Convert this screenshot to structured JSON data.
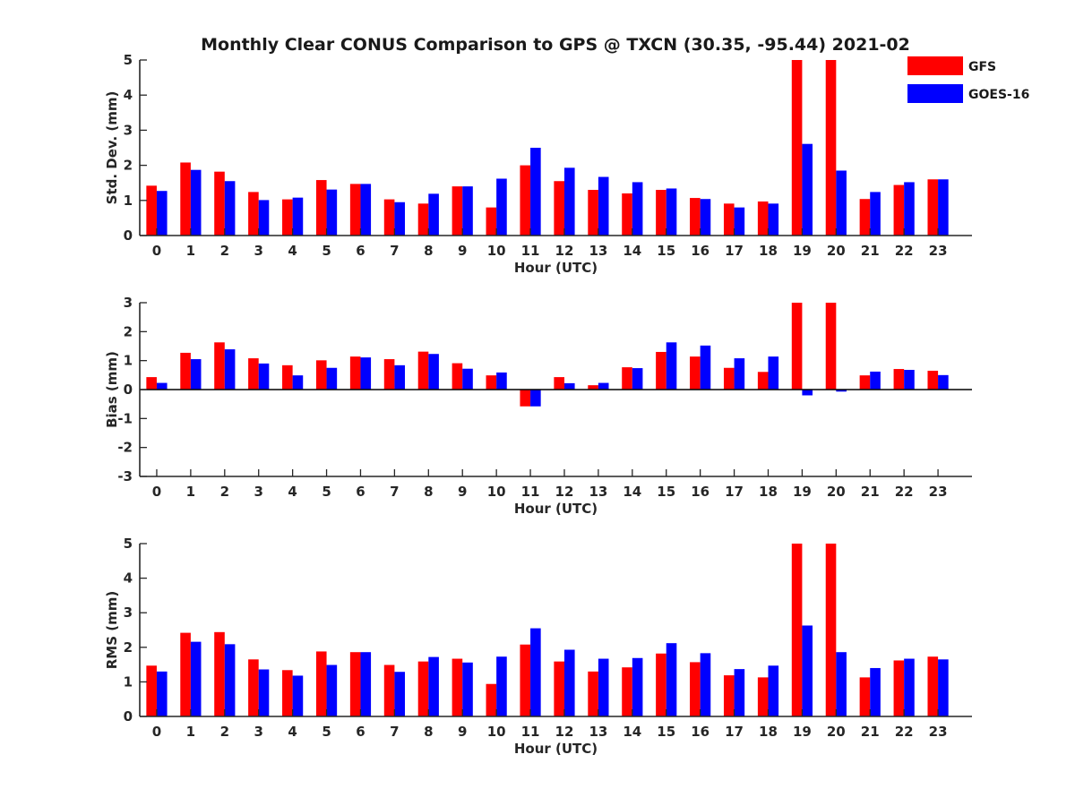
{
  "figure": {
    "title": "Monthly Clear CONUS Comparison to GPS @ TXCN (30.35, -95.44) 2021-02"
  },
  "legend": {
    "placement": "top-right",
    "entries": [
      {
        "name": "GFS",
        "color": "#ff0000"
      },
      {
        "name": "GOES-16",
        "color": "#0000ff"
      }
    ]
  },
  "chart_data": [
    {
      "type": "bar",
      "xlabel": "Hour (UTC)",
      "ylabel": "Std. Dev. (mm)",
      "ylim": [
        0,
        5
      ],
      "yticks": [
        0,
        1,
        2,
        3,
        4,
        5
      ],
      "categories": [
        "0",
        "1",
        "2",
        "3",
        "4",
        "5",
        "6",
        "7",
        "8",
        "9",
        "10",
        "11",
        "12",
        "13",
        "14",
        "15",
        "16",
        "17",
        "18",
        "19",
        "20",
        "21",
        "22",
        "23"
      ],
      "series": [
        {
          "name": "GFS",
          "color": "#ff0000",
          "values": [
            1.42,
            2.08,
            1.82,
            1.24,
            1.03,
            1.58,
            1.47,
            1.03,
            0.91,
            1.4,
            0.8,
            2.0,
            1.55,
            1.3,
            1.2,
            1.3,
            1.07,
            0.91,
            0.97,
            5.0,
            5.0,
            1.04,
            1.44,
            1.6
          ]
        },
        {
          "name": "GOES-16",
          "color": "#0000ff",
          "values": [
            1.27,
            1.87,
            1.55,
            1.01,
            1.08,
            1.31,
            1.47,
            0.95,
            1.19,
            1.4,
            1.62,
            2.5,
            1.93,
            1.67,
            1.52,
            1.34,
            1.04,
            0.8,
            0.91,
            2.61,
            1.85,
            1.24,
            1.52,
            1.6
          ]
        }
      ]
    },
    {
      "type": "bar",
      "xlabel": "Hour (UTC)",
      "ylabel": "Bias (mm)",
      "ylim": [
        -3,
        3
      ],
      "yticks": [
        -3,
        -2,
        -1,
        0,
        1,
        2,
        3
      ],
      "categories": [
        "0",
        "1",
        "2",
        "3",
        "4",
        "5",
        "6",
        "7",
        "8",
        "9",
        "10",
        "11",
        "12",
        "13",
        "14",
        "15",
        "16",
        "17",
        "18",
        "19",
        "20",
        "21",
        "22",
        "23"
      ],
      "series": [
        {
          "name": "GFS",
          "color": "#ff0000",
          "values": [
            0.43,
            1.27,
            1.63,
            1.08,
            0.84,
            1.01,
            1.14,
            1.05,
            1.31,
            0.91,
            0.49,
            -0.58,
            0.43,
            0.15,
            0.77,
            1.3,
            1.14,
            0.75,
            0.61,
            3.0,
            3.0,
            0.49,
            0.71,
            0.65
          ]
        },
        {
          "name": "GOES-16",
          "color": "#0000ff",
          "values": [
            0.23,
            1.05,
            1.39,
            0.9,
            0.49,
            0.75,
            1.11,
            0.84,
            1.23,
            0.72,
            0.59,
            -0.58,
            0.22,
            0.23,
            0.74,
            1.63,
            1.52,
            1.08,
            1.14,
            -0.2,
            -0.07,
            0.62,
            0.68,
            0.5
          ]
        }
      ]
    },
    {
      "type": "bar",
      "xlabel": "Hour (UTC)",
      "ylabel": "RMS (mm)",
      "ylim": [
        0,
        5
      ],
      "yticks": [
        0,
        1,
        2,
        3,
        4,
        5
      ],
      "categories": [
        "0",
        "1",
        "2",
        "3",
        "4",
        "5",
        "6",
        "7",
        "8",
        "9",
        "10",
        "11",
        "12",
        "13",
        "14",
        "15",
        "16",
        "17",
        "18",
        "19",
        "20",
        "21",
        "22",
        "23"
      ],
      "series": [
        {
          "name": "GFS",
          "color": "#ff0000",
          "values": [
            1.47,
            2.42,
            2.44,
            1.65,
            1.34,
            1.88,
            1.86,
            1.49,
            1.59,
            1.67,
            0.94,
            2.08,
            1.59,
            1.3,
            1.42,
            1.82,
            1.57,
            1.19,
            1.13,
            5.0,
            5.0,
            1.13,
            1.62,
            1.73
          ]
        },
        {
          "name": "GOES-16",
          "color": "#0000ff",
          "values": [
            1.3,
            2.16,
            2.09,
            1.36,
            1.18,
            1.49,
            1.86,
            1.29,
            1.72,
            1.56,
            1.73,
            2.55,
            1.93,
            1.67,
            1.69,
            2.12,
            1.83,
            1.37,
            1.47,
            2.63,
            1.86,
            1.4,
            1.67,
            1.65
          ]
        }
      ]
    }
  ]
}
